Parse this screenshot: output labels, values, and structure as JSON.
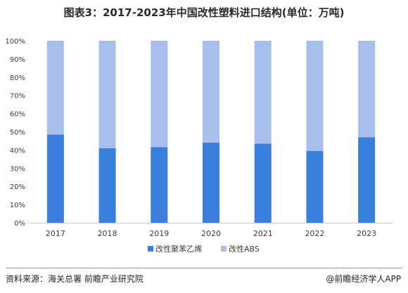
{
  "title": "图表3：2017-2023年中国改性塑料进口结构(单位：万吨)",
  "source": "资料来源：海关总署 前瞻产业研究院",
  "brand": "@前瞻经济学人APP",
  "colors": {
    "series1": "#3b7fdd",
    "series2": "#a8bfec",
    "axis": "#c8c8c8",
    "text": "#3a3a3a"
  },
  "chart_data": {
    "type": "bar",
    "stacked": true,
    "percent_stacked": true,
    "categories": [
      "2017",
      "2018",
      "2019",
      "2020",
      "2021",
      "2022",
      "2023"
    ],
    "series": [
      {
        "name": "改性聚苯乙烯",
        "values": [
          48.5,
          41,
          41.5,
          44,
          43.5,
          39.5,
          47
        ]
      },
      {
        "name": "改性ABS",
        "values": [
          51.5,
          59,
          58.5,
          56,
          56.5,
          60.5,
          53
        ]
      }
    ],
    "yticks": [
      "0%",
      "10%",
      "20%",
      "30%",
      "40%",
      "50%",
      "60%",
      "70%",
      "80%",
      "90%",
      "100%"
    ],
    "ylim": [
      0,
      100
    ],
    "grid": false,
    "legend": "bottom"
  }
}
